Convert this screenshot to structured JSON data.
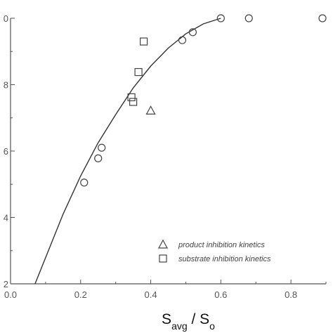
{
  "chart_data": {
    "type": "scatter",
    "xlim": [
      0.0,
      0.9
    ],
    "ylim": [
      0.2,
      1.0
    ],
    "x_ticks": [
      "0.0",
      "0.2",
      "0.4",
      "0.6",
      "0.8"
    ],
    "y_ticks": [
      "2",
      "4",
      "6",
      "8",
      "0"
    ],
    "xlabel_parts": {
      "main": "S",
      "sub1": "avg",
      "mid": " / S",
      "sub2": "o"
    },
    "series": [
      {
        "marker": "circle",
        "points": [
          [
            0.21,
            0.505
          ],
          [
            0.25,
            0.578
          ],
          [
            0.26,
            0.61
          ],
          [
            0.49,
            0.934
          ],
          [
            0.52,
            0.958
          ],
          [
            0.6,
            1.0
          ],
          [
            0.68,
            1.0
          ],
          [
            0.89,
            1.0
          ]
        ]
      },
      {
        "marker": "triangle",
        "name": "product inhibition kinetics",
        "points": [
          [
            0.4,
            0.722
          ]
        ]
      },
      {
        "marker": "square",
        "name": "substrate inhibition kinetics",
        "points": [
          [
            0.345,
            0.762
          ],
          [
            0.35,
            0.748
          ],
          [
            0.365,
            0.838
          ],
          [
            0.38,
            0.93
          ]
        ]
      }
    ],
    "fit_curve": [
      [
        0.07,
        0.2
      ],
      [
        0.15,
        0.41
      ],
      [
        0.2,
        0.525
      ],
      [
        0.25,
        0.625
      ],
      [
        0.3,
        0.71
      ],
      [
        0.35,
        0.79
      ],
      [
        0.4,
        0.856
      ],
      [
        0.45,
        0.91
      ],
      [
        0.5,
        0.953
      ],
      [
        0.55,
        0.983
      ],
      [
        0.6,
        1.0
      ]
    ],
    "legend": {
      "placement": "bottom-right"
    },
    "grid": false
  }
}
